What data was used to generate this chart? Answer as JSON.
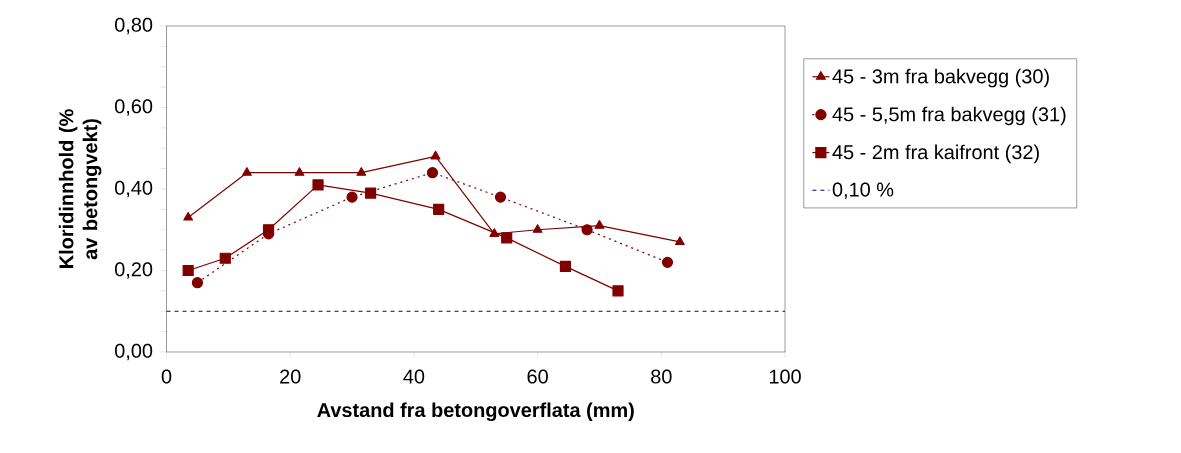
{
  "chart_data": {
    "type": "line",
    "xlabel": "Avstand fra betongoverflata (mm)",
    "ylabel": "Kloridinnhold (% av betongvekt)",
    "xlim": [
      0,
      100
    ],
    "xticks": [
      0,
      20,
      40,
      60,
      80,
      100
    ],
    "ylim": [
      0,
      0.8
    ],
    "yticks": [
      {
        "value": 0,
        "label": "0,00"
      },
      {
        "value": 0.2,
        "label": "0,20"
      },
      {
        "value": 0.4,
        "label": "0,40"
      },
      {
        "value": 0.6,
        "label": "0,60"
      },
      {
        "value": 0.8,
        "label": "0,80"
      }
    ],
    "legend": "right",
    "grid": false,
    "series": [
      {
        "name": "45 - 3m fra bakvegg (30)",
        "color": "#800000",
        "marker": "triangle",
        "line_style": "solid",
        "x": [
          3.5,
          13,
          21.5,
          31.5,
          43.5,
          53,
          60,
          70,
          83
        ],
        "values": [
          0.33,
          0.44,
          0.44,
          0.44,
          0.48,
          0.29,
          0.3,
          0.31,
          0.27
        ]
      },
      {
        "name": "45 - 5,5m fra bakvegg (31)",
        "color": "#800000",
        "marker": "circle",
        "line_style": "dotted",
        "x": [
          5,
          16.5,
          30,
          43,
          54,
          68,
          81
        ],
        "values": [
          0.17,
          0.29,
          0.38,
          0.44,
          0.38,
          0.3,
          0.22
        ]
      },
      {
        "name": "45 - 2m fra kaifront (32)",
        "color": "#800000",
        "marker": "square",
        "line_style": "solid",
        "x": [
          3.5,
          9.5,
          16.5,
          24.5,
          33,
          44,
          55,
          64.5,
          73
        ],
        "values": [
          0.2,
          0.23,
          0.3,
          0.41,
          0.39,
          0.35,
          0.28,
          0.21,
          0.15
        ]
      }
    ],
    "ref_lines": [
      {
        "axis": "y",
        "value": 0.1,
        "label": "0,10 %",
        "color": "#000080",
        "line_style": "dashed"
      }
    ]
  }
}
